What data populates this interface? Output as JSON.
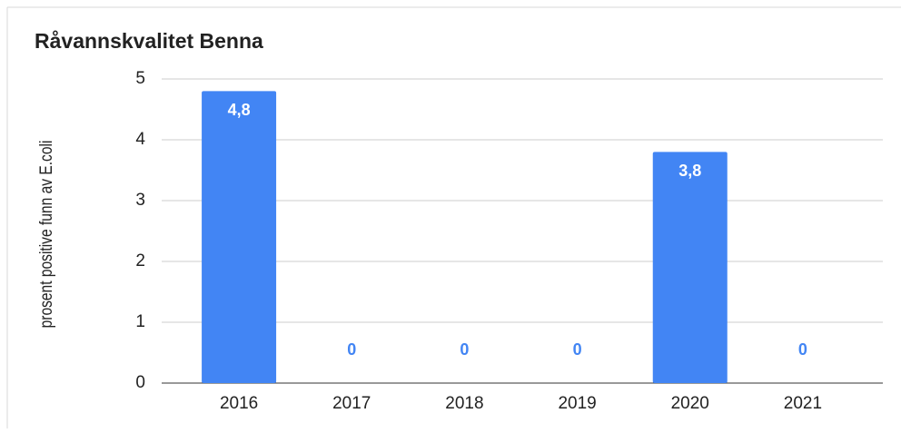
{
  "chart_data": {
    "type": "bar",
    "title": "Råvannskvalitet Benna",
    "y_label": "prosent positive funn av E.coli",
    "categories": [
      "2016",
      "2017",
      "2018",
      "2019",
      "2020",
      "2021"
    ],
    "values": [
      4.8,
      0,
      0,
      0,
      3.8,
      0
    ],
    "value_labels": [
      "4,8",
      "0",
      "0",
      "0",
      "3,8",
      "0"
    ],
    "color": "#4285f4",
    "ylim": [
      0,
      5
    ],
    "yticks": [
      0,
      1,
      2,
      3,
      4,
      5
    ],
    "grid": true
  }
}
